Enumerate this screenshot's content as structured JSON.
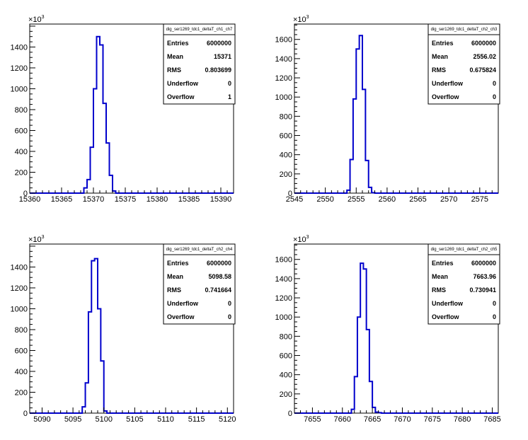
{
  "chart_data": [
    {
      "type": "histogram",
      "stats_title": "dig_ser1269_tdc1_deltaT_ch1_ch7",
      "stats": [
        {
          "label": "Entries",
          "value": "6000000"
        },
        {
          "label": "Mean",
          "value": "15371"
        },
        {
          "label": "RMS",
          "value": "0.803699"
        },
        {
          "label": "Underflow",
          "value": "0"
        },
        {
          "label": "Overflow",
          "value": "1"
        }
      ],
      "xlim": [
        15360,
        15392
      ],
      "xticks": [
        "15360",
        "15365",
        "15370",
        "15375",
        "15380",
        "15385",
        "15390"
      ],
      "ylim": [
        0,
        1620
      ],
      "yticks": [
        "0",
        "200",
        "400",
        "600",
        "800",
        "1000",
        "1200",
        "1400"
      ],
      "y_multiplier": "10",
      "y_multiplier_exp": "3",
      "bin_width": 0.5,
      "bins_x": [
        15368.5,
        15369,
        15369.5,
        15370,
        15370.5,
        15371,
        15371.5,
        15372,
        15372.5,
        15373
      ],
      "bins_y": [
        50,
        130,
        440,
        1000,
        1500,
        1420,
        860,
        480,
        170,
        20
      ]
    },
    {
      "type": "histogram",
      "stats_title": "dig_ser1269_tdc1_deltaT_ch2_ch3",
      "stats": [
        {
          "label": "Entries",
          "value": "6000000"
        },
        {
          "label": "Mean",
          "value": "2556.02"
        },
        {
          "label": "RMS",
          "value": "0.675824"
        },
        {
          "label": "Underflow",
          "value": "0"
        },
        {
          "label": "Overflow",
          "value": "0"
        }
      ],
      "xlim": [
        2545,
        2578
      ],
      "xticks": [
        "2545",
        "2550",
        "2555",
        "2560",
        "2565",
        "2570",
        "2575"
      ],
      "ylim": [
        0,
        1760
      ],
      "yticks": [
        "0",
        "200",
        "400",
        "600",
        "800",
        "1000",
        "1200",
        "1400",
        "1600"
      ],
      "y_multiplier": "10",
      "y_multiplier_exp": "3",
      "bin_width": 0.5,
      "bins_x": [
        2553.5,
        2554,
        2554.5,
        2555,
        2555.5,
        2556,
        2556.5,
        2557,
        2557.5
      ],
      "bins_y": [
        30,
        350,
        980,
        1500,
        1640,
        1080,
        340,
        60,
        5
      ]
    },
    {
      "type": "histogram",
      "stats_title": "dig_ser1269_tdc1_deltaT_ch2_ch4",
      "stats": [
        {
          "label": "Entries",
          "value": "6000000"
        },
        {
          "label": "Mean",
          "value": "5098.58"
        },
        {
          "label": "RMS",
          "value": "0.741664"
        },
        {
          "label": "Underflow",
          "value": "0"
        },
        {
          "label": "Overflow",
          "value": "0"
        }
      ],
      "xlim": [
        5088,
        5121
      ],
      "xticks": [
        "5090",
        "5095",
        "5100",
        "5105",
        "5110",
        "5115",
        "5120"
      ],
      "ylim": [
        0,
        1620
      ],
      "yticks": [
        "0",
        "200",
        "400",
        "600",
        "800",
        "1000",
        "1200",
        "1400"
      ],
      "y_multiplier": "10",
      "y_multiplier_exp": "3",
      "bin_width": 0.5,
      "bins_x": [
        5096.5,
        5097,
        5097.5,
        5098,
        5098.5,
        5099,
        5099.5,
        5100
      ],
      "bins_y": [
        60,
        290,
        970,
        1460,
        1480,
        1000,
        500,
        20
      ]
    },
    {
      "type": "histogram",
      "stats_title": "dig_ser1269_tdc1_deltaT_ch2_ch5",
      "stats": [
        {
          "label": "Entries",
          "value": "6000000"
        },
        {
          "label": "Mean",
          "value": "7663.96"
        },
        {
          "label": "RMS",
          "value": "0.730941"
        },
        {
          "label": "Underflow",
          "value": "0"
        },
        {
          "label": "Overflow",
          "value": "0"
        }
      ],
      "xlim": [
        7652,
        7686
      ],
      "xticks": [
        "7655",
        "7660",
        "7665",
        "7670",
        "7675",
        "7680",
        "7685"
      ],
      "ylim": [
        0,
        1760
      ],
      "yticks": [
        "0",
        "200",
        "400",
        "600",
        "800",
        "1000",
        "1200",
        "1400",
        "1600"
      ],
      "y_multiplier": "10",
      "y_multiplier_exp": "3",
      "bin_width": 0.5,
      "bins_x": [
        7661.5,
        7662,
        7662.5,
        7663,
        7663.5,
        7664,
        7664.5,
        7665,
        7665.5,
        7666
      ],
      "bins_y": [
        40,
        380,
        1000,
        1560,
        1500,
        870,
        330,
        60,
        10,
        5
      ]
    }
  ]
}
